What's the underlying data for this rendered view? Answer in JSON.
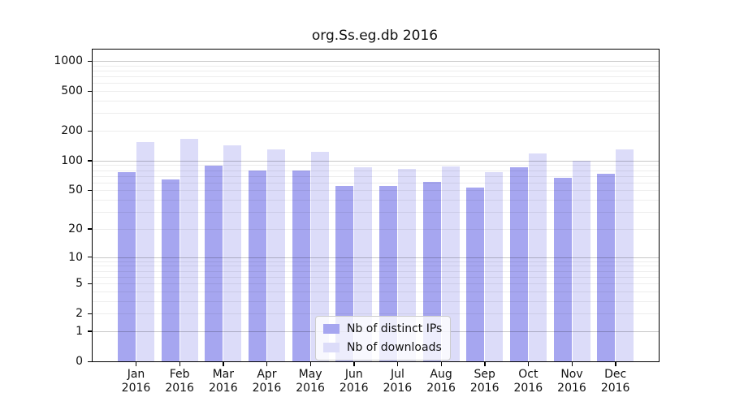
{
  "chart_data": {
    "type": "bar",
    "title": "org.Ss.eg.db 2016",
    "categories": [
      {
        "month": "Jan",
        "year": "2016"
      },
      {
        "month": "Feb",
        "year": "2016"
      },
      {
        "month": "Mar",
        "year": "2016"
      },
      {
        "month": "Apr",
        "year": "2016"
      },
      {
        "month": "May",
        "year": "2016"
      },
      {
        "month": "Jun",
        "year": "2016"
      },
      {
        "month": "Jul",
        "year": "2016"
      },
      {
        "month": "Aug",
        "year": "2016"
      },
      {
        "month": "Sep",
        "year": "2016"
      },
      {
        "month": "Oct",
        "year": "2016"
      },
      {
        "month": "Nov",
        "year": "2016"
      },
      {
        "month": "Dec",
        "year": "2016"
      }
    ],
    "series": [
      {
        "name": "Nb of distinct IPs",
        "color": "#a6a6f0",
        "values": [
          77,
          64,
          89,
          80,
          79,
          56,
          56,
          61,
          53,
          86,
          67,
          74
        ]
      },
      {
        "name": "Nb of downloads",
        "color": "#dcdcf9",
        "values": [
          154,
          167,
          142,
          131,
          123,
          86,
          83,
          88,
          77,
          118,
          100,
          129
        ]
      }
    ],
    "y_scale": "log10(1+x)",
    "y_ticks": [
      0,
      1,
      2,
      5,
      10,
      20,
      50,
      100,
      200,
      500,
      1000
    ],
    "ylim": [
      0,
      1300
    ],
    "grid": true,
    "legend_position": "lower center",
    "colors": {
      "major_grid": "#c7c7c7",
      "minor_grid": "#ededed",
      "axis": "#000000",
      "background": "#ffffff"
    }
  }
}
